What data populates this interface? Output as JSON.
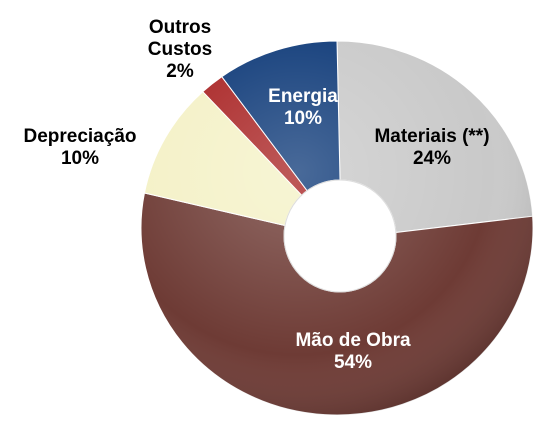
{
  "chart_data": {
    "type": "donut",
    "categories": [
      "Materiais (**)",
      "Mão de Obra",
      "Depreciação",
      "Outros Custos",
      "Energia"
    ],
    "values": [
      24,
      54,
      10,
      2,
      10
    ],
    "value_labels": [
      "24%",
      "54%",
      "10%",
      "2%",
      "10%"
    ],
    "colors": [
      "#c9c9c9",
      "#6e3b35",
      "#f4f1c6",
      "#a82222",
      "#0c3877"
    ]
  }
}
